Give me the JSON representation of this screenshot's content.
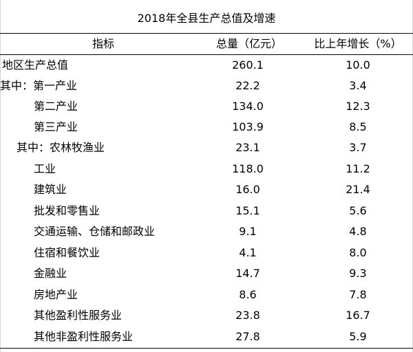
{
  "title": "2018年全县生产总值及增速",
  "header": {
    "indicator": "指标",
    "total": "总量（亿元）",
    "growth": "比上年增长（%）"
  },
  "rows": [
    {
      "label": "地区生产总值",
      "total": "260.1",
      "growth": "10.0"
    },
    {
      "label": "其中：第一产业",
      "total": "22.2",
      "growth": "3.4"
    },
    {
      "label": "第二产业",
      "total": "134.0",
      "growth": "12.3"
    },
    {
      "label": "第三产业",
      "total": "103.9",
      "growth": "8.5"
    },
    {
      "label": "其中：农林牧渔业",
      "total": "23.1",
      "growth": "3.7"
    },
    {
      "label": "工业",
      "total": "118.0",
      "growth": "11.2"
    },
    {
      "label": "建筑业",
      "total": "16.0",
      "growth": "21.4"
    },
    {
      "label": "批发和零售业",
      "total": "15.1",
      "growth": "5.6"
    },
    {
      "label": "交通运输、仓储和邮政业",
      "total": "9.1",
      "growth": "4.8"
    },
    {
      "label": "住宿和餐饮业",
      "total": "4.1",
      "growth": "8.0"
    },
    {
      "label": "金融业",
      "total": "14.7",
      "growth": "9.3"
    },
    {
      "label": "房地产业",
      "total": "8.6",
      "growth": "7.8"
    },
    {
      "label": "其他盈利性服务业",
      "total": "23.8",
      "growth": "16.7"
    },
    {
      "label": "其他非盈利性服务业",
      "total": "27.8",
      "growth": "5.9"
    }
  ]
}
